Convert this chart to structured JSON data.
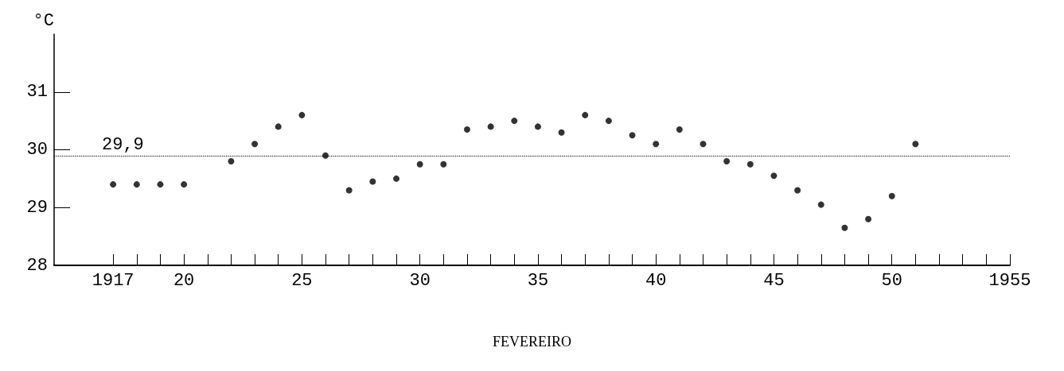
{
  "chart_data": {
    "type": "scatter",
    "xlabel": "FEVEREIRO",
    "ylabel": "°C",
    "x": [
      1917,
      1918,
      1919,
      1920,
      1922,
      1923,
      1924,
      1925,
      1926,
      1927,
      1928,
      1929,
      1930,
      1931,
      1932,
      1933,
      1934,
      1935,
      1936,
      1937,
      1938,
      1939,
      1940,
      1941,
      1942,
      1943,
      1944,
      1945,
      1946,
      1947,
      1948,
      1949,
      1950,
      1951
    ],
    "values": [
      29.4,
      29.4,
      29.4,
      29.4,
      29.8,
      30.1,
      30.4,
      30.6,
      29.9,
      29.3,
      29.45,
      29.5,
      29.75,
      29.75,
      30.35,
      30.4,
      30.5,
      30.4,
      30.3,
      30.6,
      30.5,
      30.25,
      30.1,
      30.35,
      30.1,
      29.8,
      29.75,
      29.55,
      29.3,
      29.05,
      28.65,
      28.8,
      29.2,
      30.1
    ],
    "color": "#000000",
    "marker": "circle",
    "xlim": [
      1914.5,
      1955
    ],
    "xticks": [
      1917,
      {
        "value": 1918,
        "label": null
      },
      {
        "value": 1919,
        "label": null
      },
      {
        "value": 1920,
        "label": "20"
      },
      {
        "value": 1921,
        "label": null
      },
      {
        "value": 1922,
        "label": null
      },
      {
        "value": 1923,
        "label": null
      },
      {
        "value": 1924,
        "label": null
      },
      {
        "value": 1925,
        "label": "25"
      },
      {
        "value": 1926,
        "label": null
      },
      {
        "value": 1927,
        "label": null
      },
      {
        "value": 1928,
        "label": null
      },
      {
        "value": 1929,
        "label": null
      },
      {
        "value": 1930,
        "label": "30"
      },
      {
        "value": 1931,
        "label": null
      },
      {
        "value": 1932,
        "label": null
      },
      {
        "value": 1933,
        "label": null
      },
      {
        "value": 1934,
        "label": null
      },
      {
        "value": 1935,
        "label": "35"
      },
      {
        "value": 1936,
        "label": null
      },
      {
        "value": 1937,
        "label": null
      },
      {
        "value": 1938,
        "label": null
      },
      {
        "value": 1939,
        "label": null
      },
      {
        "value": 1940,
        "label": "40"
      },
      {
        "value": 1941,
        "label": null
      },
      {
        "value": 1942,
        "label": null
      },
      {
        "value": 1943,
        "label": null
      },
      {
        "value": 1944,
        "label": null
      },
      {
        "value": 1945,
        "label": "45"
      },
      {
        "value": 1946,
        "label": null
      },
      {
        "value": 1947,
        "label": null
      },
      {
        "value": 1948,
        "label": null
      },
      {
        "value": 1949,
        "label": null
      },
      {
        "value": 1950,
        "label": "50"
      },
      {
        "value": 1951,
        "label": null
      },
      {
        "value": 1952,
        "label": null
      },
      {
        "value": 1953,
        "label": null
      },
      {
        "value": 1954,
        "label": null
      },
      1955
    ],
    "ylim": [
      28,
      32
    ],
    "yticks": [
      28,
      29,
      30,
      31
    ],
    "ref_lines": [
      {
        "axis": "y",
        "value": 29.9,
        "label": "29,9",
        "color": "#000000",
        "line_style": "dotted"
      }
    ],
    "grid": false
  }
}
